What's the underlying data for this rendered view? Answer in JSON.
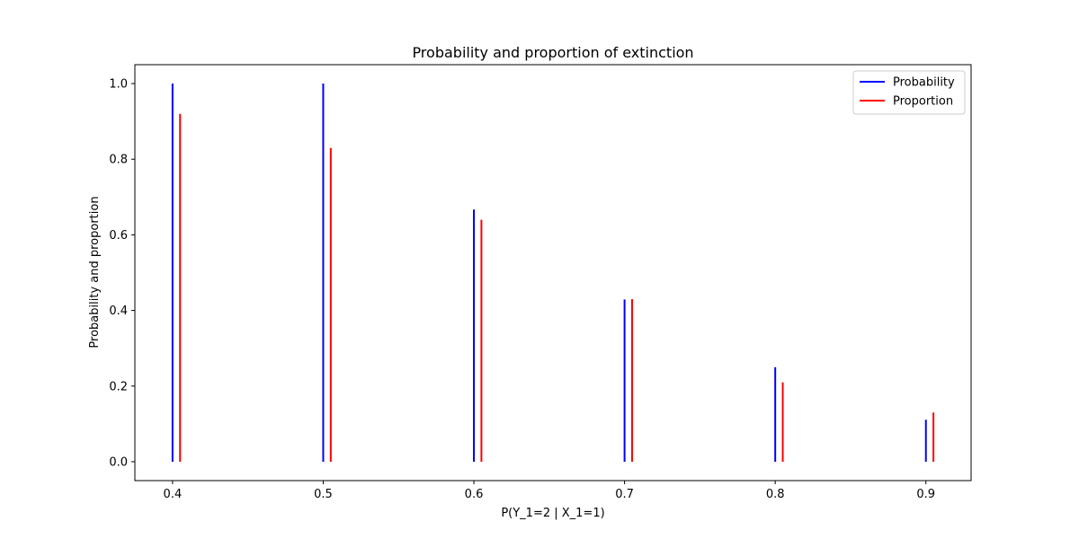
{
  "chart_data": {
    "type": "bar",
    "title": "Probability and proportion of extinction",
    "xlabel": "P(Y_1=2 | X_1=1)",
    "ylabel": "Probability and proportion",
    "xlim": [
      0.375,
      0.93
    ],
    "ylim": [
      -0.05,
      1.05
    ],
    "xticks": [
      0.4,
      0.5,
      0.6,
      0.7,
      0.8,
      0.9
    ],
    "xtick_labels": [
      "0.4",
      "0.5",
      "0.6",
      "0.7",
      "0.8",
      "0.9"
    ],
    "yticks": [
      0.0,
      0.2,
      0.4,
      0.6,
      0.8,
      1.0
    ],
    "ytick_labels": [
      "0.0",
      "0.2",
      "0.4",
      "0.6",
      "0.8",
      "1.0"
    ],
    "grid": false,
    "legend_position": "top-right",
    "series": [
      {
        "name": "Probability",
        "color": "#0000ff",
        "x": [
          0.4,
          0.5,
          0.6,
          0.7,
          0.8,
          0.9
        ],
        "values": [
          1.0,
          1.0,
          0.667,
          0.429,
          0.25,
          0.111
        ]
      },
      {
        "name": "Proportion",
        "color": "#ff0000",
        "x": [
          0.405,
          0.505,
          0.605,
          0.705,
          0.805,
          0.905
        ],
        "values": [
          0.92,
          0.83,
          0.64,
          0.43,
          0.21,
          0.13
        ]
      }
    ]
  }
}
